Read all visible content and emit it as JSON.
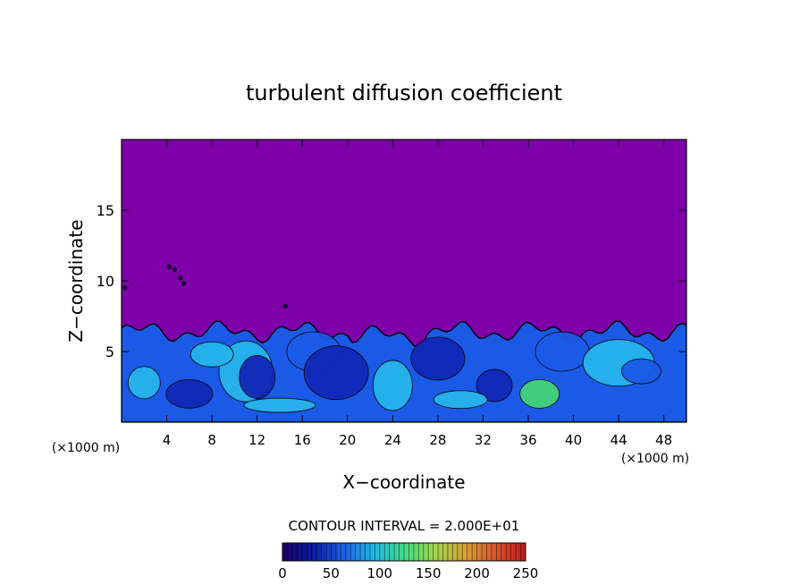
{
  "chart_data": {
    "type": "heatmap",
    "title": "turbulent diffusion coefficient",
    "xlabel": "X−coordinate",
    "ylabel": "Z−coordinate",
    "x_unit_left": "(×1000 m)",
    "x_unit_right": "(×1000 m)",
    "xlim": [
      0,
      50
    ],
    "ylim": [
      0,
      20
    ],
    "x_ticks": [
      4,
      8,
      12,
      16,
      20,
      24,
      28,
      32,
      36,
      40,
      44,
      48
    ],
    "y_ticks": [
      5,
      10,
      15
    ],
    "contour_interval_label": "CONTOUR INTERVAL = 2.000E+01",
    "colorbar": {
      "min": 0,
      "max": 250,
      "ticks": [
        0,
        50,
        100,
        150,
        200,
        250
      ],
      "stops": [
        "#1a0060",
        "#0c1aa0",
        "#1f5fe0",
        "#23b6e6",
        "#3fdc88",
        "#9ed64a",
        "#d8a23a",
        "#d8542a",
        "#c21a1a"
      ]
    },
    "background_color": "#7e00a8",
    "field_colors": {
      "dark": "#1228b8",
      "mid": "#1a5ae6",
      "light": "#26b4ec",
      "green": "#44d47a"
    },
    "mixed_layer_top_approx": 7
  }
}
